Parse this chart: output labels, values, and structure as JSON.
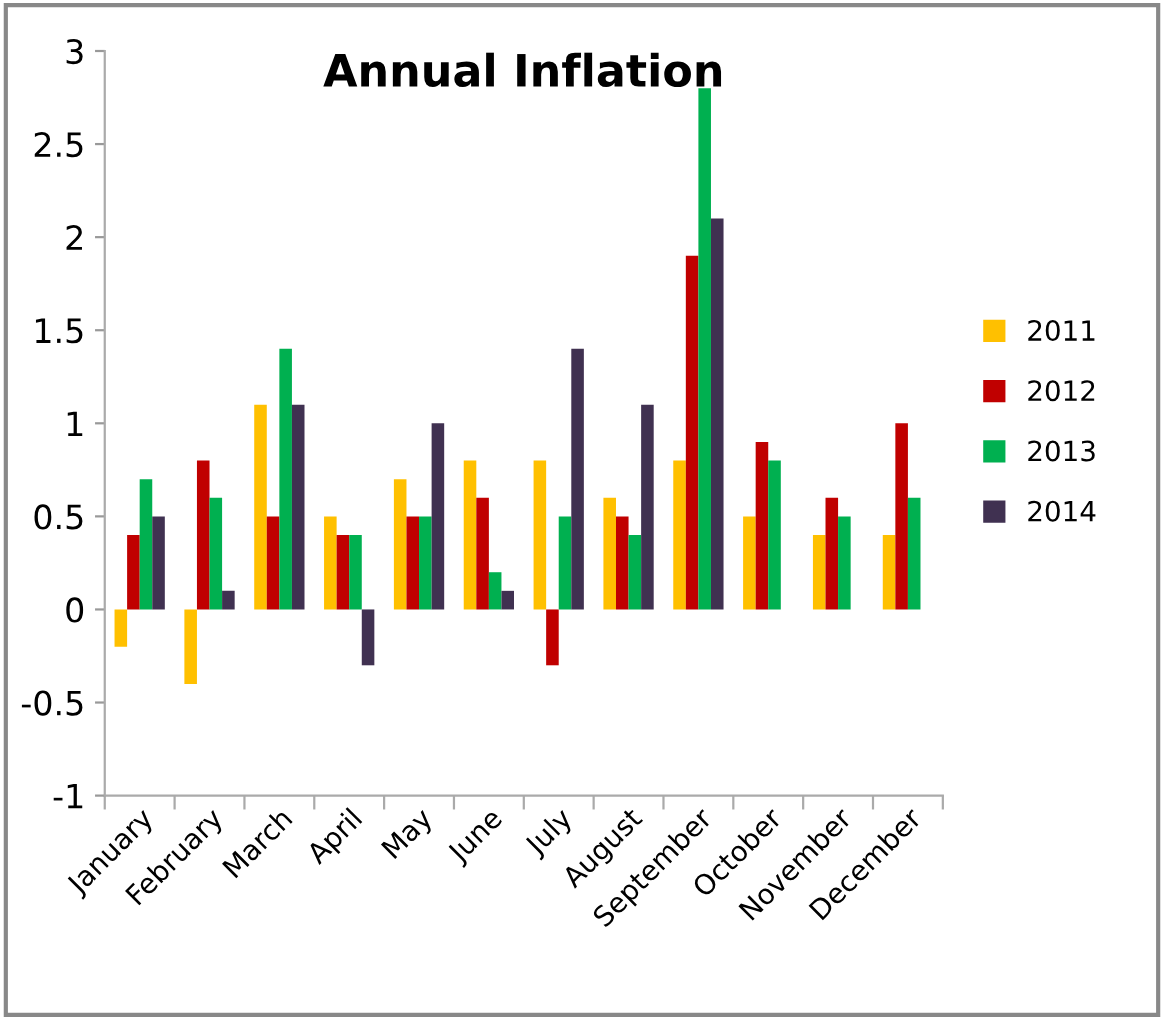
{
  "chart_data": {
    "type": "bar",
    "title": "Annual Inflation",
    "categories": [
      "January",
      "February",
      "March",
      "April",
      "May",
      "June",
      "July",
      "August",
      "September",
      "October",
      "November",
      "December"
    ],
    "series": [
      {
        "name": "2011",
        "color": "#ffc000",
        "values": [
          -0.2,
          -0.4,
          1.1,
          0.5,
          0.7,
          0.8,
          0.8,
          0.6,
          0.8,
          0.5,
          0.4,
          0.4
        ]
      },
      {
        "name": "2012",
        "color": "#c00000",
        "values": [
          0.4,
          0.8,
          0.5,
          0.4,
          0.5,
          0.6,
          -0.3,
          0.5,
          1.9,
          0.9,
          0.6,
          1.0
        ]
      },
      {
        "name": "2013",
        "color": "#00b050",
        "values": [
          0.7,
          0.6,
          1.4,
          0.4,
          0.5,
          0.2,
          0.5,
          0.4,
          2.8,
          0.8,
          0.5,
          0.6
        ]
      },
      {
        "name": "2014",
        "color": "#403151",
        "values": [
          0.5,
          0.1,
          1.1,
          -0.3,
          1.0,
          0.1,
          1.4,
          1.1,
          2.1,
          null,
          null,
          null
        ]
      }
    ],
    "ylim": [
      -1,
      3
    ],
    "yticks": [
      -1,
      -0.5,
      0,
      0.5,
      1,
      1.5,
      2,
      2.5,
      3
    ],
    "grid": false,
    "legend": "right"
  }
}
